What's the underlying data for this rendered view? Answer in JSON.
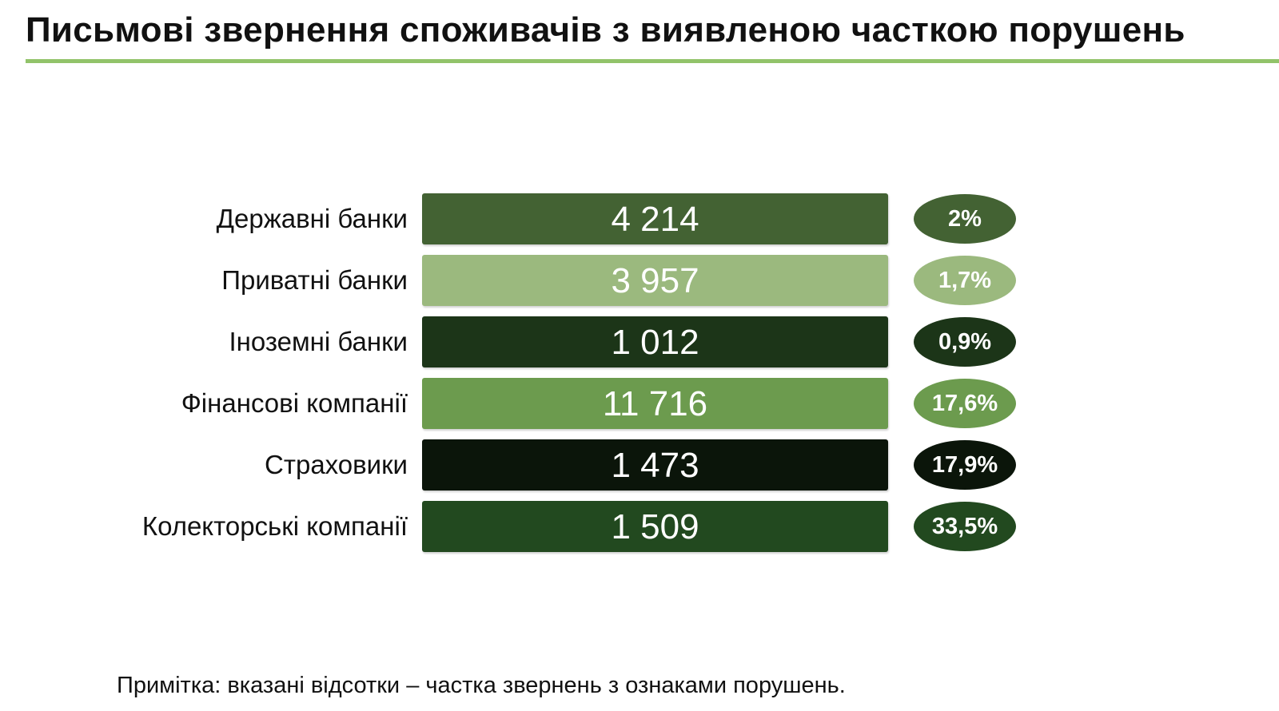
{
  "page": {
    "title": "Письмові звернення споживачів з виявленою часткою порушень",
    "footnote": "Примітка: вказані відсотки – частка звернень з ознаками порушень.",
    "accent_color": "#92c36a"
  },
  "chart_data": {
    "type": "bar",
    "orientation": "horizontal",
    "title": "Письмові звернення споживачів з виявленою часткою порушень",
    "categories": [
      "Державні банки",
      "Приватні банки",
      "Іноземні банки",
      "Фінансові компанії",
      "Страховики",
      "Колекторські компанії"
    ],
    "series": [
      {
        "values": [
          4214,
          3957,
          1012,
          11716,
          1473,
          1509
        ],
        "value_labels": [
          "4 214",
          "3 957",
          "1 012",
          "11 716",
          "1 473",
          "1 509"
        ]
      },
      {
        "values": [
          2,
          1.7,
          0.9,
          17.6,
          17.9,
          33.5
        ],
        "value_labels": [
          "2%",
          "1,7%",
          "0,9%",
          "17,6%",
          "17,9%",
          "33,5%"
        ]
      }
    ],
    "colors": [
      "#436233",
      "#9bb97e",
      "#1c3518",
      "#6c9b4e",
      "#0b150a",
      "#22491f"
    ],
    "legend": "none",
    "grid": false
  }
}
